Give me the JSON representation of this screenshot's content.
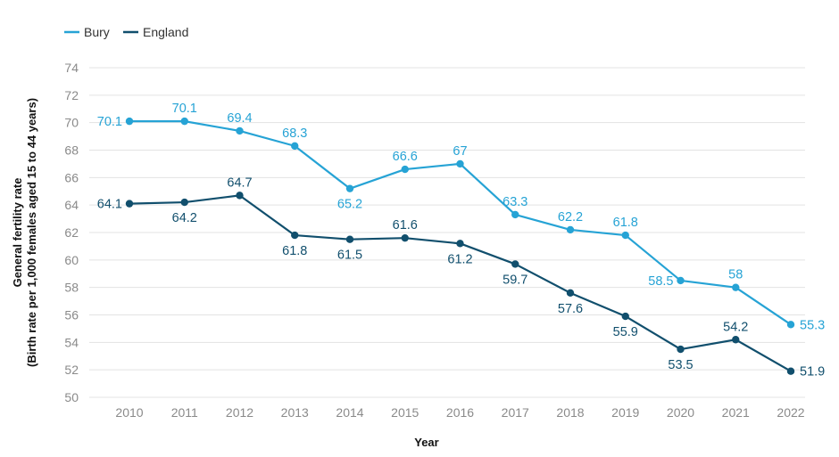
{
  "chart_data": {
    "type": "line",
    "title": "",
    "xlabel": "Year",
    "ylabel": "General fertility rate",
    "ylabel_sub": "(Birth rate per 1,000 females aged 15 to 44 years)",
    "categories": [
      "2010",
      "2011",
      "2012",
      "2013",
      "2014",
      "2015",
      "2016",
      "2017",
      "2018",
      "2019",
      "2020",
      "2021",
      "2022"
    ],
    "ylim": [
      50,
      74
    ],
    "yticks": [
      50,
      52,
      54,
      56,
      58,
      60,
      62,
      64,
      66,
      68,
      70,
      72,
      74
    ],
    "grid": true,
    "legend_position": "top-left",
    "series": [
      {
        "name": "Bury",
        "color": "#26a3d5",
        "values": [
          70.1,
          70.1,
          69.4,
          68.3,
          65.2,
          66.6,
          67,
          63.3,
          62.2,
          61.8,
          58.5,
          58,
          55.3
        ],
        "labels": [
          "70.1",
          "70.1",
          "69.4",
          "68.3",
          "65.2",
          "66.6",
          "67",
          "63.3",
          "62.2",
          "61.8",
          "58.5",
          "58",
          "55.3"
        ]
      },
      {
        "name": "England",
        "color": "#114f6d",
        "values": [
          64.1,
          64.2,
          64.7,
          61.8,
          61.5,
          61.6,
          61.2,
          59.7,
          57.6,
          55.9,
          53.5,
          54.2,
          51.9
        ],
        "labels": [
          "64.1",
          "64.2",
          "64.7",
          "61.8",
          "61.5",
          "61.6",
          "61.2",
          "59.7",
          "57.6",
          "55.9",
          "53.5",
          "54.2",
          "51.9"
        ]
      }
    ]
  }
}
